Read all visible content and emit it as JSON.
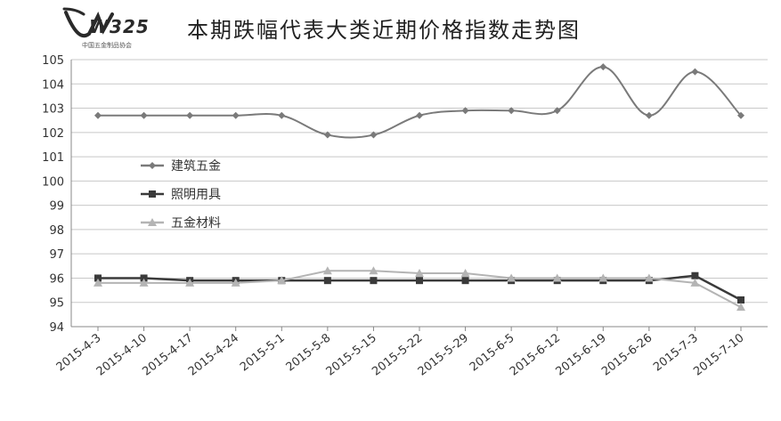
{
  "logo": {
    "text": "W325",
    "subtitle": "中国五金制品协会"
  },
  "chart_data": {
    "type": "line",
    "title": "本期跌幅代表大类近期价格指数走势图",
    "categories": [
      "2015-4-3",
      "2015-4-10",
      "2015-4-17",
      "2015-4-24",
      "2015-5-1",
      "2015-5-8",
      "2015-5-15",
      "2015-5-22",
      "2015-5-29",
      "2015-6-5",
      "2015-6-12",
      "2015-6-19",
      "2015-6-26",
      "2015-7-3",
      "2015-7-10"
    ],
    "y_ticks": [
      "94",
      "95",
      "96",
      "97",
      "98",
      "99",
      "100",
      "101",
      "102",
      "103",
      "104",
      "105"
    ],
    "ylim": [
      94,
      105
    ],
    "grid": true,
    "legend_position": "left",
    "series": [
      {
        "name": "建筑五金",
        "color": "#7a7a7a",
        "marker": "diamond",
        "values": [
          102.7,
          102.7,
          102.7,
          102.7,
          102.7,
          101.9,
          101.9,
          102.7,
          102.9,
          102.9,
          102.9,
          104.7,
          102.7,
          104.5,
          102.7
        ]
      },
      {
        "name": "照明用具",
        "color": "#3a3a3a",
        "marker": "square",
        "values": [
          96.0,
          96.0,
          95.9,
          95.9,
          95.9,
          95.9,
          95.9,
          95.9,
          95.9,
          95.9,
          95.9,
          95.9,
          95.9,
          96.1,
          95.1
        ]
      },
      {
        "name": "五金材料",
        "color": "#b4b4b4",
        "marker": "triangle",
        "values": [
          95.8,
          95.8,
          95.8,
          95.8,
          95.9,
          96.3,
          96.3,
          96.2,
          96.2,
          96.0,
          96.0,
          96.0,
          96.0,
          95.8,
          94.8
        ]
      }
    ]
  }
}
